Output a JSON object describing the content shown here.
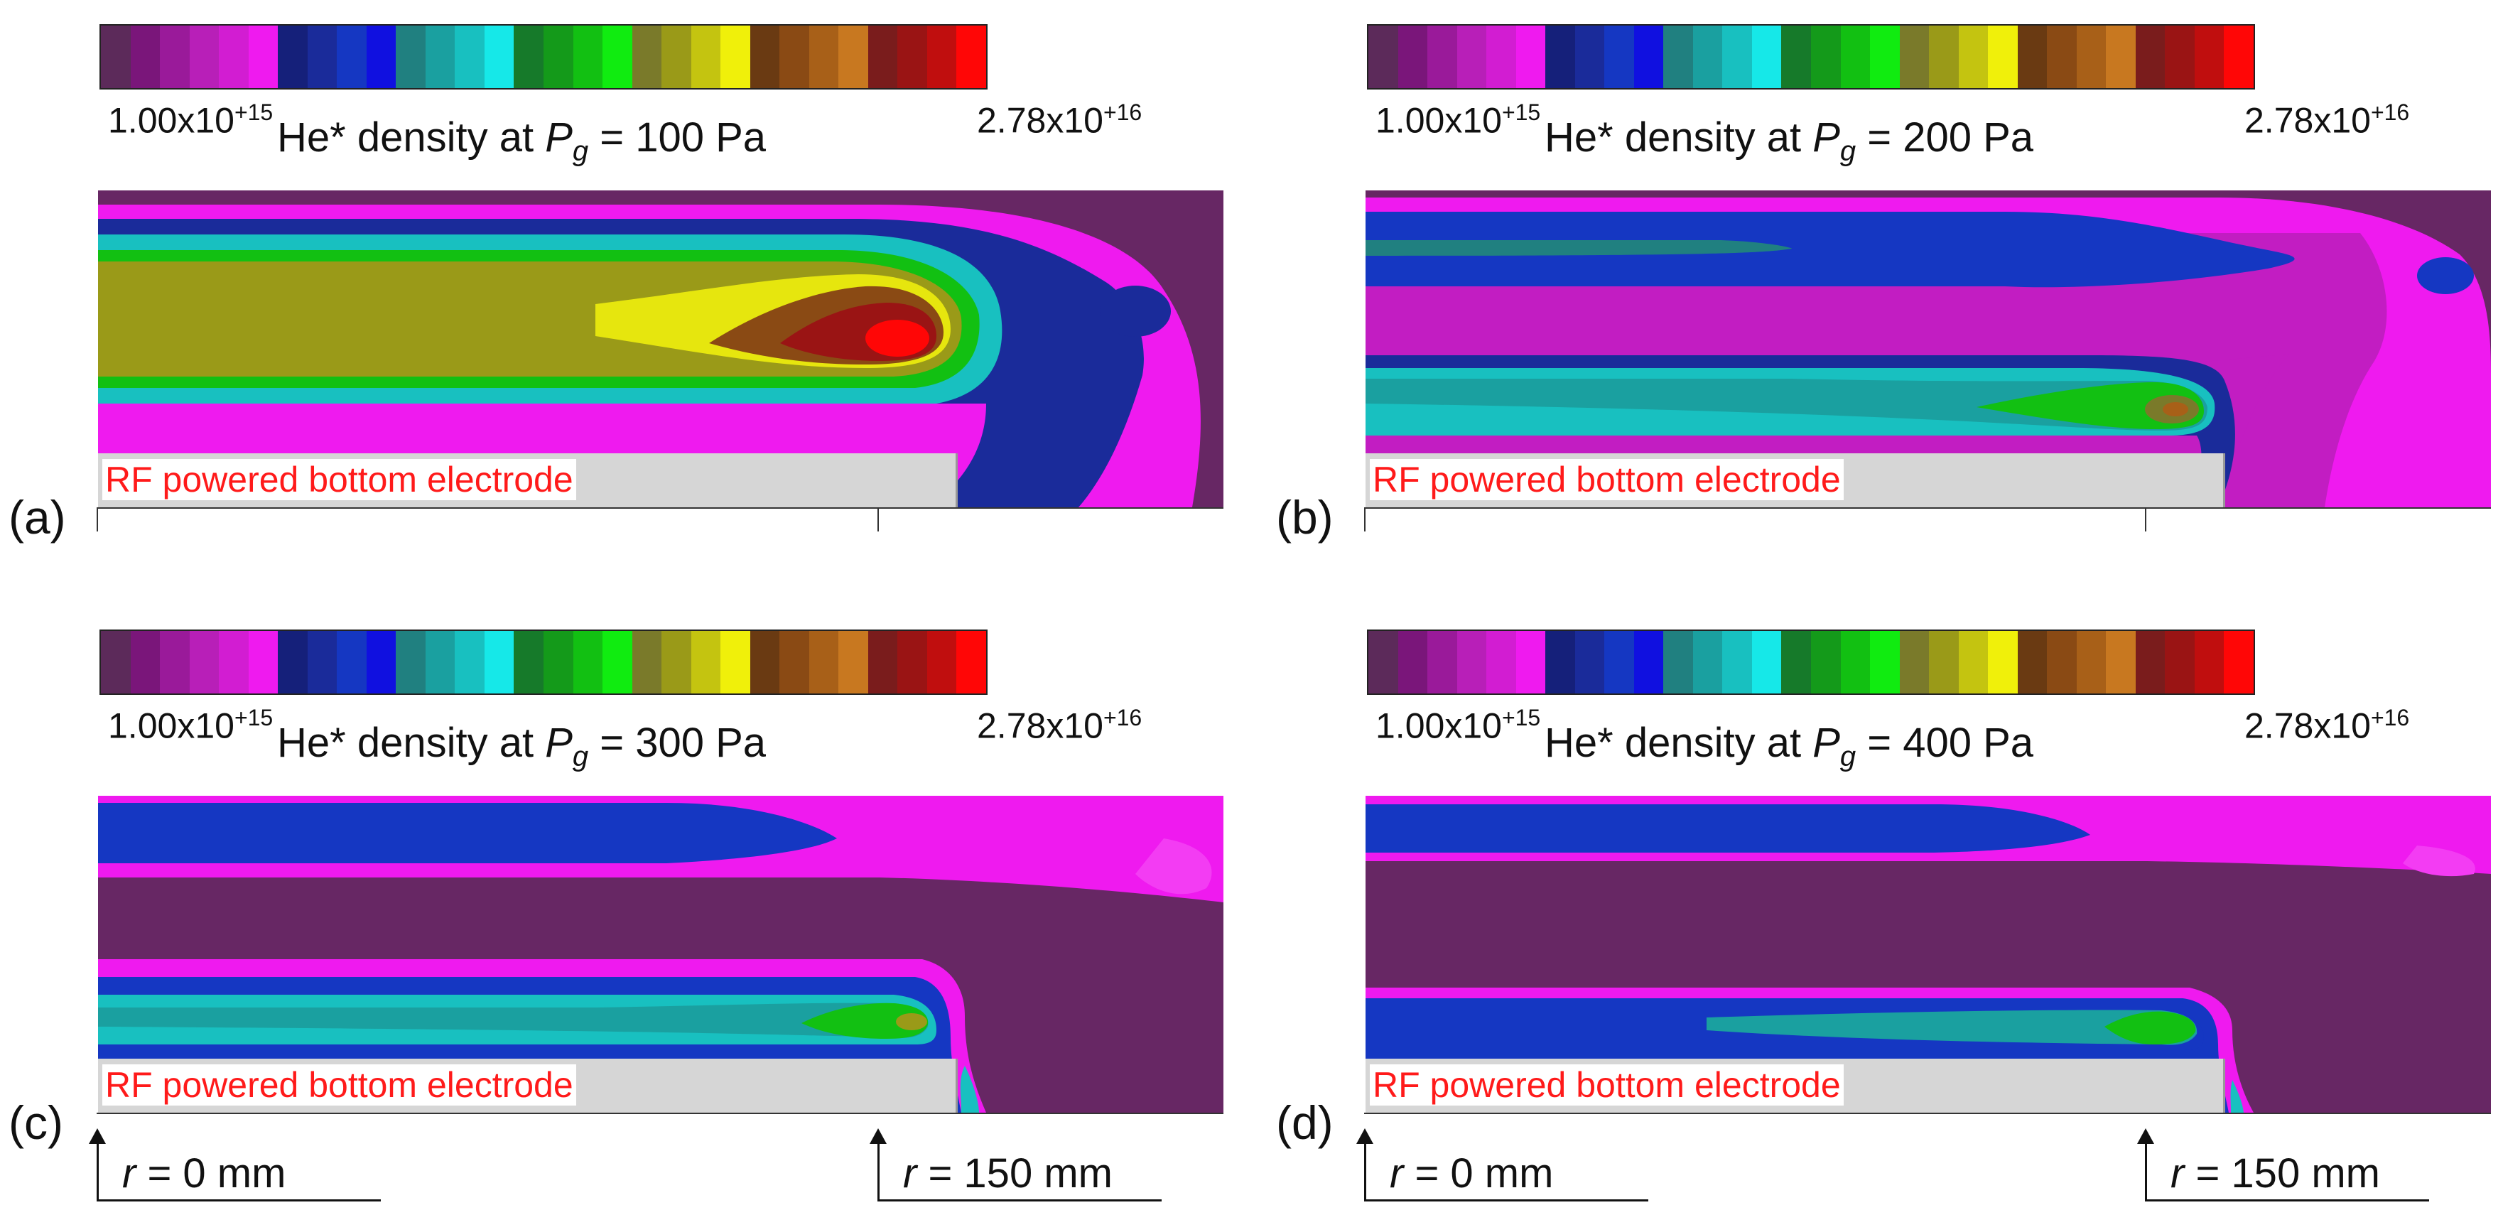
{
  "colorbar": {
    "min_label_base": "1.00x10",
    "min_label_exp": "+15",
    "max_label_base": "2.78x10",
    "max_label_exp": "+16",
    "colors": [
      "#5c2a5a",
      "#7a167a",
      "#9a1a9a",
      "#b81fb8",
      "#d21dd2",
      "#ef1aef",
      "#15207a",
      "#1a2b9a",
      "#1537c2",
      "#1010e0",
      "#208080",
      "#1aa0a0",
      "#18c0c0",
      "#16e8e8",
      "#167a2a",
      "#149a1a",
      "#12c012",
      "#10ec10",
      "#7a7a2a",
      "#9a9a18",
      "#c4c410",
      "#f0f00a",
      "#6a3a12",
      "#8a4a14",
      "#a86018",
      "#c87820",
      "#7a1c1c",
      "#9a1414",
      "#c00e0e",
      "#ff0606"
    ]
  },
  "title_prefix": "He* density at ",
  "title_var": "P",
  "title_sub": "g",
  "electrode_label": "RF powered bottom electrode",
  "panels": [
    {
      "label": "(a)",
      "pressure": " = 100 Pa"
    },
    {
      "label": "(b)",
      "pressure": " = 200 Pa"
    },
    {
      "label": "(c)",
      "pressure": " = 300 Pa"
    },
    {
      "label": "(d)",
      "pressure": " = 400 Pa"
    }
  ],
  "radius_markers": {
    "var": "r",
    "r0": " = 0 mm",
    "r150": " = 150 mm"
  }
}
